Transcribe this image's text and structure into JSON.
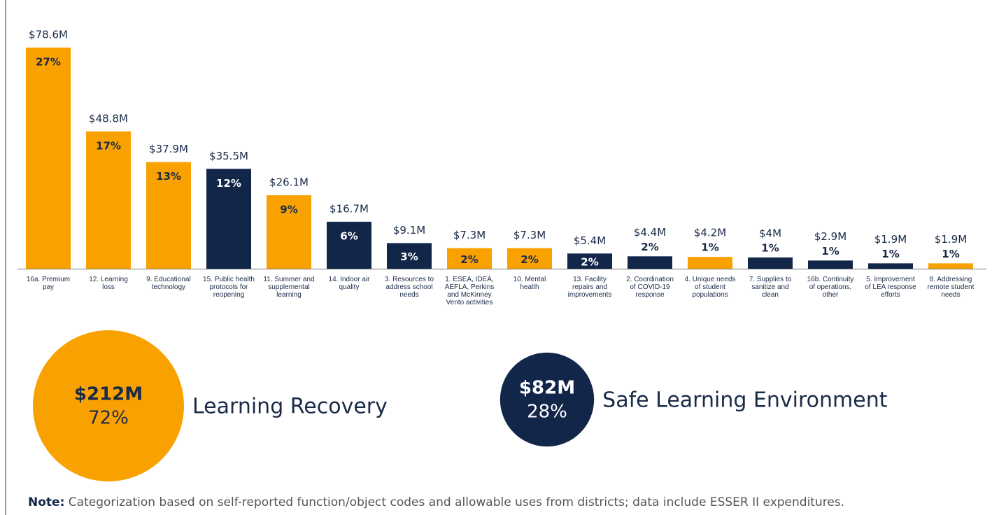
{
  "chart_data": {
    "type": "bar",
    "categories": [
      "16a. Premium pay",
      "12. Learning loss",
      "9. Educational technology",
      "15. Public health protocols for reopening",
      "11. Summer and supplemental learning",
      "14. Indoor air quality",
      "3. Resources to address school needs",
      "1. ESEA, IDEA, AEFLA, Perkins and McKinney Vento activities",
      "10. Mental health",
      "13. Facility repairs and improvements",
      "2. Coordination of COVID-19 response",
      "4. Unique needs of student populations",
      "7. Supplies to sanitize and clean",
      "16b. Continuity of operations, other",
      "5. Improvement of LEA response efforts",
      "8. Addressing remote student needs"
    ],
    "values": [
      78.6,
      48.8,
      37.9,
      35.5,
      26.1,
      16.7,
      9.1,
      7.3,
      7.3,
      5.4,
      4.4,
      4.2,
      4,
      2.9,
      1.9,
      1.9
    ],
    "value_labels": [
      "$78.6M",
      "$48.8M",
      "$37.9M",
      "$35.5M",
      "$26.1M",
      "$16.7M",
      "$9.1M",
      "$7.3M",
      "$7.3M",
      "$5.4M",
      "$4.4M",
      "$4.2M",
      "$4M",
      "$2.9M",
      "$1.9M",
      "$1.9M"
    ],
    "shares": [
      27,
      17,
      13,
      12,
      9,
      6,
      3,
      2,
      2,
      2,
      2,
      1,
      1,
      1,
      1,
      1
    ],
    "share_labels": [
      "27%",
      "17%",
      "13%",
      "12%",
      "9%",
      "6%",
      "3%",
      "2%",
      "2%",
      "2%",
      "2%",
      "1%",
      "1%",
      "1%",
      "1%",
      "1%"
    ],
    "colors": [
      "#f9a100",
      "#f9a100",
      "#f9a100",
      "#12264a",
      "#f9a100",
      "#12264a",
      "#12264a",
      "#f9a100",
      "#f9a100",
      "#12264a",
      "#12264a",
      "#f9a100",
      "#12264a",
      "#12264a",
      "#12264a",
      "#f9a100"
    ],
    "groups": [
      {
        "name": "Learning Recovery",
        "value": 212,
        "value_label": "$212M",
        "share": 72,
        "share_label": "72%",
        "color": "#f9a100"
      },
      {
        "name": "Safe Learning Environment",
        "value": 82,
        "value_label": "$82M",
        "share": 28,
        "share_label": "28%",
        "color": "#12264a"
      }
    ]
  },
  "note": {
    "label": "Note:",
    "text": "Categorization based on self-reported function/object codes and allowable uses from districts; data include ESSER II expenditures."
  }
}
